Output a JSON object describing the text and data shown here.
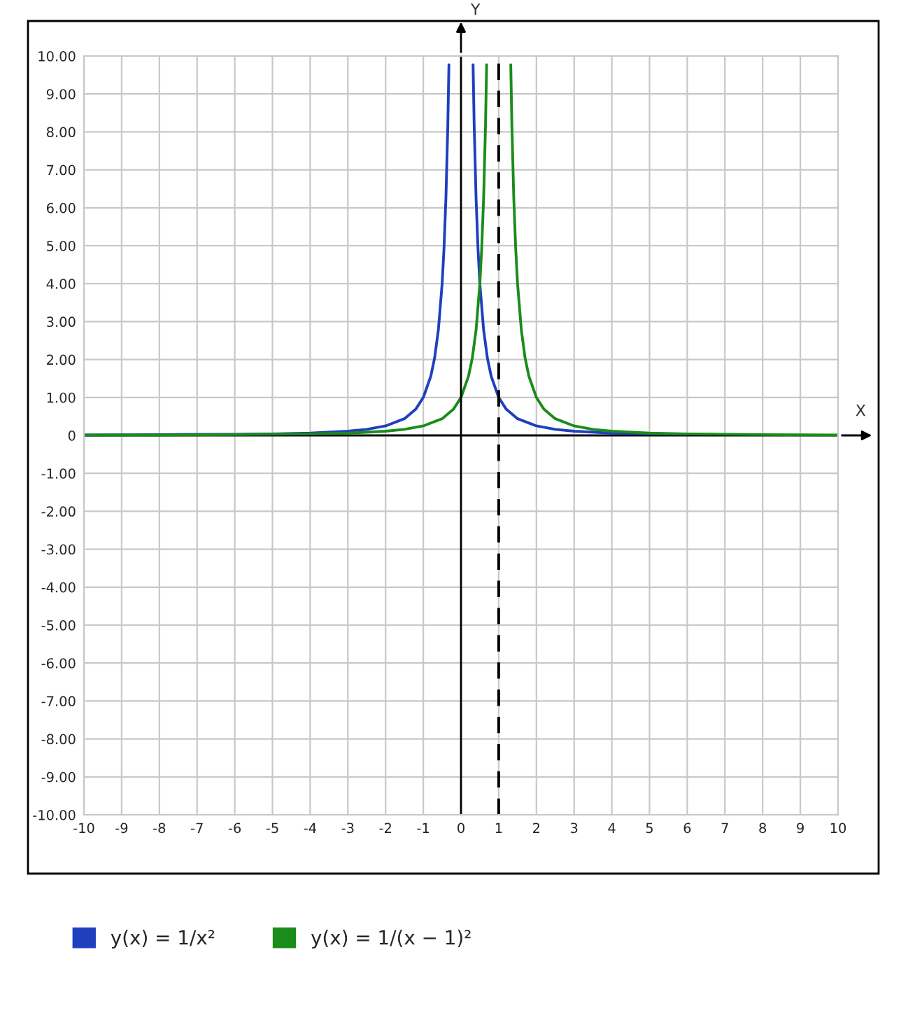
{
  "chart_data": {
    "type": "line",
    "xlabel": "X",
    "ylabel": "Y",
    "xlim": [
      -10,
      10
    ],
    "ylim": [
      -10,
      10
    ],
    "xticks": [
      -10,
      -9,
      -8,
      -7,
      -6,
      -5,
      -4,
      -3,
      -2,
      -1,
      0,
      1,
      2,
      3,
      4,
      5,
      6,
      7,
      8,
      9,
      10
    ],
    "yticks": [
      {
        "value": -10,
        "label": "-10.00"
      },
      {
        "value": -9,
        "label": "-9.00"
      },
      {
        "value": -8,
        "label": "-8.00"
      },
      {
        "value": -7,
        "label": "-7.00"
      },
      {
        "value": -6,
        "label": "-6.00"
      },
      {
        "value": -5,
        "label": "-5.00"
      },
      {
        "value": -4,
        "label": "-4.00"
      },
      {
        "value": -3,
        "label": "-3.00"
      },
      {
        "value": -2,
        "label": "-2.00"
      },
      {
        "value": -1,
        "label": "-1.00"
      },
      0,
      {
        "value": 1,
        "label": "1.00"
      },
      {
        "value": 2,
        "label": "2.00"
      },
      {
        "value": 3,
        "label": "3.00"
      },
      {
        "value": 4,
        "label": "4.00"
      },
      {
        "value": 5,
        "label": "5.00"
      },
      {
        "value": 6,
        "label": "6.00"
      },
      {
        "value": 7,
        "label": "7.00"
      },
      {
        "value": 8,
        "label": "8.00"
      },
      {
        "value": 9,
        "label": "9.00"
      },
      {
        "value": 10,
        "label": "10.00"
      }
    ],
    "grid": true,
    "legend": "bottom",
    "marker": "none",
    "line_style": "solid",
    "ref_lines": [
      {
        "axis": "x",
        "value": 1,
        "color": "#000000",
        "line_style": "dashed"
      }
    ],
    "series": [
      {
        "name": "y(x) = 1/x²",
        "color": "#1f3fbf",
        "x": [
          -10,
          -8,
          -6,
          -5,
          -4,
          -3,
          -2.5,
          -2,
          -1.5,
          -1.2,
          -1,
          -0.8,
          -0.7,
          -0.6,
          -0.5,
          -0.45,
          -0.4,
          -0.35,
          -0.32,
          0,
          0.32,
          0.35,
          0.4,
          0.45,
          0.5,
          0.6,
          0.7,
          0.8,
          1,
          1.2,
          1.5,
          2,
          2.5,
          3,
          4,
          5,
          6
        ],
        "values": [
          0.01,
          0.02,
          0.03,
          0.04,
          0.06,
          0.11,
          0.16,
          0.25,
          0.44,
          0.69,
          1.0,
          1.56,
          2.04,
          2.78,
          4.0,
          4.94,
          6.25,
          8.16,
          9.77,
          null,
          9.77,
          8.16,
          6.25,
          4.94,
          4.0,
          2.78,
          2.04,
          1.56,
          1.0,
          0.69,
          0.44,
          0.25,
          0.16,
          0.11,
          0.06,
          0.04,
          0.03
        ]
      },
      {
        "name": "y(x) = 1/(x − 1)²",
        "color": "#1a8c1a",
        "x": [
          -10,
          -8,
          -6,
          -5,
          -4,
          -3,
          -2,
          -1.5,
          -1,
          -0.5,
          -0.2,
          0,
          0.2,
          0.3,
          0.4,
          0.5,
          0.55,
          0.6,
          0.65,
          0.68,
          1,
          1.32,
          1.35,
          1.4,
          1.45,
          1.5,
          1.6,
          1.7,
          1.8,
          2,
          2.2,
          2.5,
          3,
          3.5,
          4,
          5,
          6,
          7,
          8,
          10
        ],
        "values": [
          0.01,
          0.01,
          0.02,
          0.03,
          0.04,
          0.06,
          0.11,
          0.16,
          0.25,
          0.44,
          0.69,
          1.0,
          1.56,
          2.04,
          2.78,
          4.0,
          4.94,
          6.25,
          8.16,
          9.77,
          null,
          9.77,
          8.16,
          6.25,
          4.94,
          4.0,
          2.78,
          2.04,
          1.56,
          1.0,
          0.69,
          0.44,
          0.25,
          0.16,
          0.11,
          0.06,
          0.04,
          0.03,
          0.02,
          0.01
        ]
      }
    ]
  }
}
